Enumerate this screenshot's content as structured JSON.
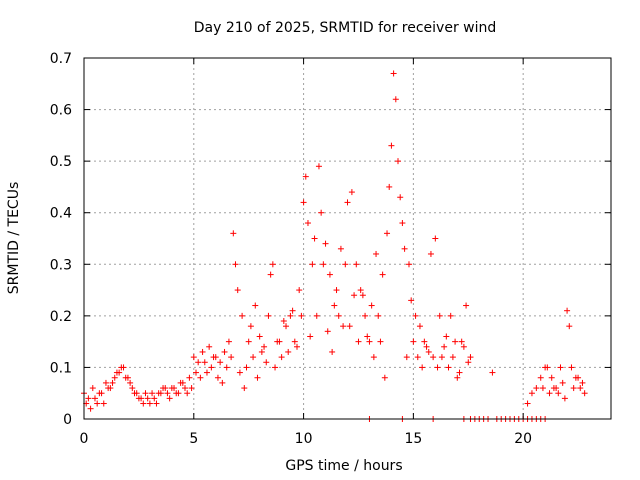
{
  "chart_data": {
    "type": "scatter",
    "title": "Day 210 of 2025, SRMTID for receiver wind",
    "xlabel": "GPS time / hours",
    "ylabel": "SRMTID / TECUs",
    "xlim": [
      0,
      24
    ],
    "ylim": [
      0,
      0.7
    ],
    "x_ticks": [
      "0",
      "5",
      "10",
      "15",
      "20"
    ],
    "y_ticks": [
      "0",
      "0.1",
      "0.2",
      "0.3",
      "0.4",
      "0.5",
      "0.6",
      "0.7"
    ],
    "grid": true,
    "marker": "plus",
    "marker_color": "#ff0000",
    "series": [
      {
        "name": "wind",
        "x": [
          0.0,
          0.2,
          0.4,
          0.6,
          0.8,
          1.0,
          1.2,
          1.4,
          1.6,
          1.8,
          2.0,
          2.2,
          2.4,
          2.6,
          2.8,
          3.0,
          3.2,
          3.4,
          3.6,
          3.8,
          4.0,
          4.2,
          4.4,
          4.6,
          4.8,
          5.0,
          5.2,
          5.4,
          5.6,
          5.8,
          6.0,
          6.2,
          6.4,
          6.6,
          6.8,
          6.9,
          7.0,
          7.2,
          7.4,
          7.6,
          7.8,
          8.0,
          8.2,
          8.4,
          8.6,
          8.8,
          9.0,
          9.2,
          9.4,
          9.6,
          9.8,
          10.0,
          10.1,
          10.2,
          10.4,
          10.5,
          10.6,
          10.7,
          10.8,
          11.0,
          11.2,
          11.4,
          11.6,
          11.8,
          12.0,
          12.2,
          12.4,
          12.6,
          12.8,
          13.0,
          13.2,
          13.4,
          13.6,
          13.8,
          13.9,
          14.0,
          14.1,
          14.2,
          14.3,
          14.4,
          14.5,
          14.6,
          14.8,
          15.0,
          15.2,
          15.4,
          15.6,
          15.8,
          16.0,
          16.2,
          16.4,
          16.6,
          16.8,
          17.0,
          17.2,
          17.4,
          17.6,
          18.6,
          20.2,
          20.4,
          20.6,
          20.8,
          21.0,
          21.2,
          21.4,
          21.6,
          21.8,
          22.0,
          22.1,
          22.2,
          22.4,
          22.6,
          22.8,
          0.1,
          0.3,
          0.5,
          0.7,
          0.9,
          1.1,
          1.3,
          1.5,
          1.7,
          1.9,
          2.1,
          2.3,
          2.5,
          2.7,
          2.9,
          3.1,
          3.3,
          3.5,
          3.7,
          3.9,
          4.1,
          4.3,
          4.5,
          4.7,
          4.9,
          5.1,
          5.3,
          5.5,
          5.7,
          5.9,
          6.1,
          6.3,
          6.5,
          6.7,
          7.1,
          7.3,
          7.5,
          7.7,
          7.9,
          8.1,
          8.3,
          8.5,
          8.7,
          8.9,
          9.1,
          9.3,
          9.5,
          9.7,
          9.9,
          10.3,
          10.9,
          11.1,
          11.3,
          11.5,
          11.7,
          11.9,
          12.1,
          12.3,
          12.5,
          12.7,
          12.9,
          13.1,
          13.3,
          13.5,
          13.7,
          14.7,
          14.9,
          15.1,
          15.3,
          15.5,
          15.7,
          15.9,
          16.1,
          16.3,
          16.5,
          16.7,
          16.9,
          17.1,
          17.3,
          17.5,
          20.9,
          21.1,
          21.3,
          21.5,
          21.7,
          21.9,
          22.3,
          22.5,
          22.7,
          13.0,
          14.5,
          15.9,
          17.3,
          17.6,
          17.8,
          18.0,
          18.2,
          18.4,
          18.8,
          19.0,
          19.2,
          19.4,
          19.6,
          19.8,
          20.0,
          20.2,
          20.4,
          20.6,
          20.8,
          21.0
        ],
        "y": [
          0.05,
          0.04,
          0.06,
          0.03,
          0.05,
          0.07,
          0.06,
          0.08,
          0.09,
          0.1,
          0.08,
          0.06,
          0.05,
          0.04,
          0.05,
          0.03,
          0.04,
          0.05,
          0.06,
          0.05,
          0.06,
          0.05,
          0.07,
          0.06,
          0.08,
          0.12,
          0.11,
          0.13,
          0.09,
          0.1,
          0.12,
          0.11,
          0.13,
          0.15,
          0.36,
          0.3,
          0.25,
          0.2,
          0.1,
          0.18,
          0.22,
          0.16,
          0.14,
          0.2,
          0.3,
          0.15,
          0.12,
          0.18,
          0.2,
          0.15,
          0.25,
          0.42,
          0.47,
          0.38,
          0.3,
          0.35,
          0.2,
          0.49,
          0.4,
          0.34,
          0.28,
          0.22,
          0.2,
          0.18,
          0.42,
          0.44,
          0.3,
          0.25,
          0.2,
          0.15,
          0.12,
          0.2,
          0.28,
          0.36,
          0.45,
          0.53,
          0.67,
          0.62,
          0.5,
          0.43,
          0.38,
          0.33,
          0.3,
          0.15,
          0.12,
          0.1,
          0.14,
          0.32,
          0.35,
          0.2,
          0.14,
          0.1,
          0.12,
          0.08,
          0.15,
          0.22,
          0.12,
          0.09,
          0.03,
          0.05,
          0.06,
          0.08,
          0.1,
          0.05,
          0.06,
          0.05,
          0.07,
          0.21,
          0.18,
          0.1,
          0.08,
          0.06,
          0.05,
          0.03,
          0.02,
          0.04,
          0.05,
          0.03,
          0.06,
          0.07,
          0.09,
          0.1,
          0.08,
          0.07,
          0.05,
          0.04,
          0.03,
          0.04,
          0.05,
          0.03,
          0.05,
          0.06,
          0.04,
          0.06,
          0.05,
          0.07,
          0.05,
          0.06,
          0.09,
          0.08,
          0.11,
          0.14,
          0.12,
          0.08,
          0.07,
          0.1,
          0.12,
          0.09,
          0.06,
          0.15,
          0.12,
          0.08,
          0.13,
          0.11,
          0.28,
          0.1,
          0.15,
          0.19,
          0.13,
          0.21,
          0.14,
          0.2,
          0.16,
          0.3,
          0.17,
          0.13,
          0.25,
          0.33,
          0.3,
          0.18,
          0.24,
          0.15,
          0.24,
          0.16,
          0.22,
          0.32,
          0.15,
          0.08,
          0.12,
          0.23,
          0.2,
          0.18,
          0.15,
          0.13,
          0.12,
          0.1,
          0.12,
          0.16,
          0.2,
          0.15,
          0.09,
          0.14,
          0.11,
          0.06,
          0.1,
          0.08,
          0.06,
          0.1,
          0.04,
          0.06,
          0.08,
          0.07,
          0.0,
          0.0,
          0.0,
          0.0,
          0.0,
          0.0,
          0.0,
          0.0,
          0.0,
          0.0,
          0.0,
          0.0,
          0.0,
          0.0,
          0.0,
          0.0,
          0.0,
          0.0,
          0.0,
          0.0,
          0.0
        ]
      }
    ]
  }
}
